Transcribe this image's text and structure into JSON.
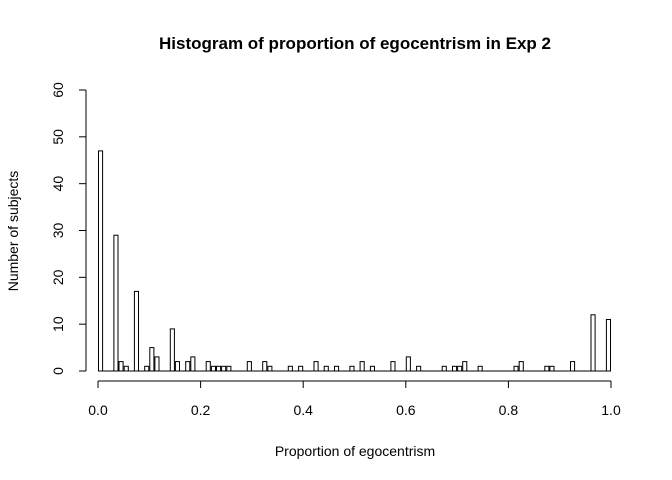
{
  "chart_data": {
    "type": "bar",
    "title": "Histogram of proportion of egocentrism in Exp 2",
    "xlabel": "Proportion of egocentrism",
    "ylabel": "Number of subjects",
    "xlim": [
      0,
      1
    ],
    "ylim": [
      0,
      60
    ],
    "xticks": [
      "0.0",
      "0.2",
      "0.4",
      "0.6",
      "0.8",
      "1.0"
    ],
    "yticks": [
      "0",
      "10",
      "20",
      "30",
      "40",
      "50",
      "60"
    ],
    "bin_width": 0.01,
    "x": [
      0.0,
      0.03,
      0.04,
      0.05,
      0.07,
      0.09,
      0.1,
      0.11,
      0.14,
      0.15,
      0.17,
      0.18,
      0.21,
      0.22,
      0.23,
      0.24,
      0.25,
      0.29,
      0.32,
      0.33,
      0.37,
      0.39,
      0.42,
      0.44,
      0.46,
      0.49,
      0.51,
      0.53,
      0.57,
      0.6,
      0.62,
      0.67,
      0.69,
      0.7,
      0.71,
      0.74,
      0.81,
      0.82,
      0.87,
      0.88,
      0.92,
      0.96,
      0.99
    ],
    "values": [
      47,
      29,
      2,
      1,
      17,
      1,
      5,
      3,
      9,
      2,
      2,
      3,
      2,
      1,
      1,
      1,
      1,
      2,
      2,
      1,
      1,
      1,
      2,
      1,
      1,
      1,
      2,
      1,
      2,
      3,
      1,
      1,
      1,
      1,
      2,
      1,
      1,
      2,
      1,
      1,
      2,
      12,
      11
    ],
    "grid": false
  }
}
